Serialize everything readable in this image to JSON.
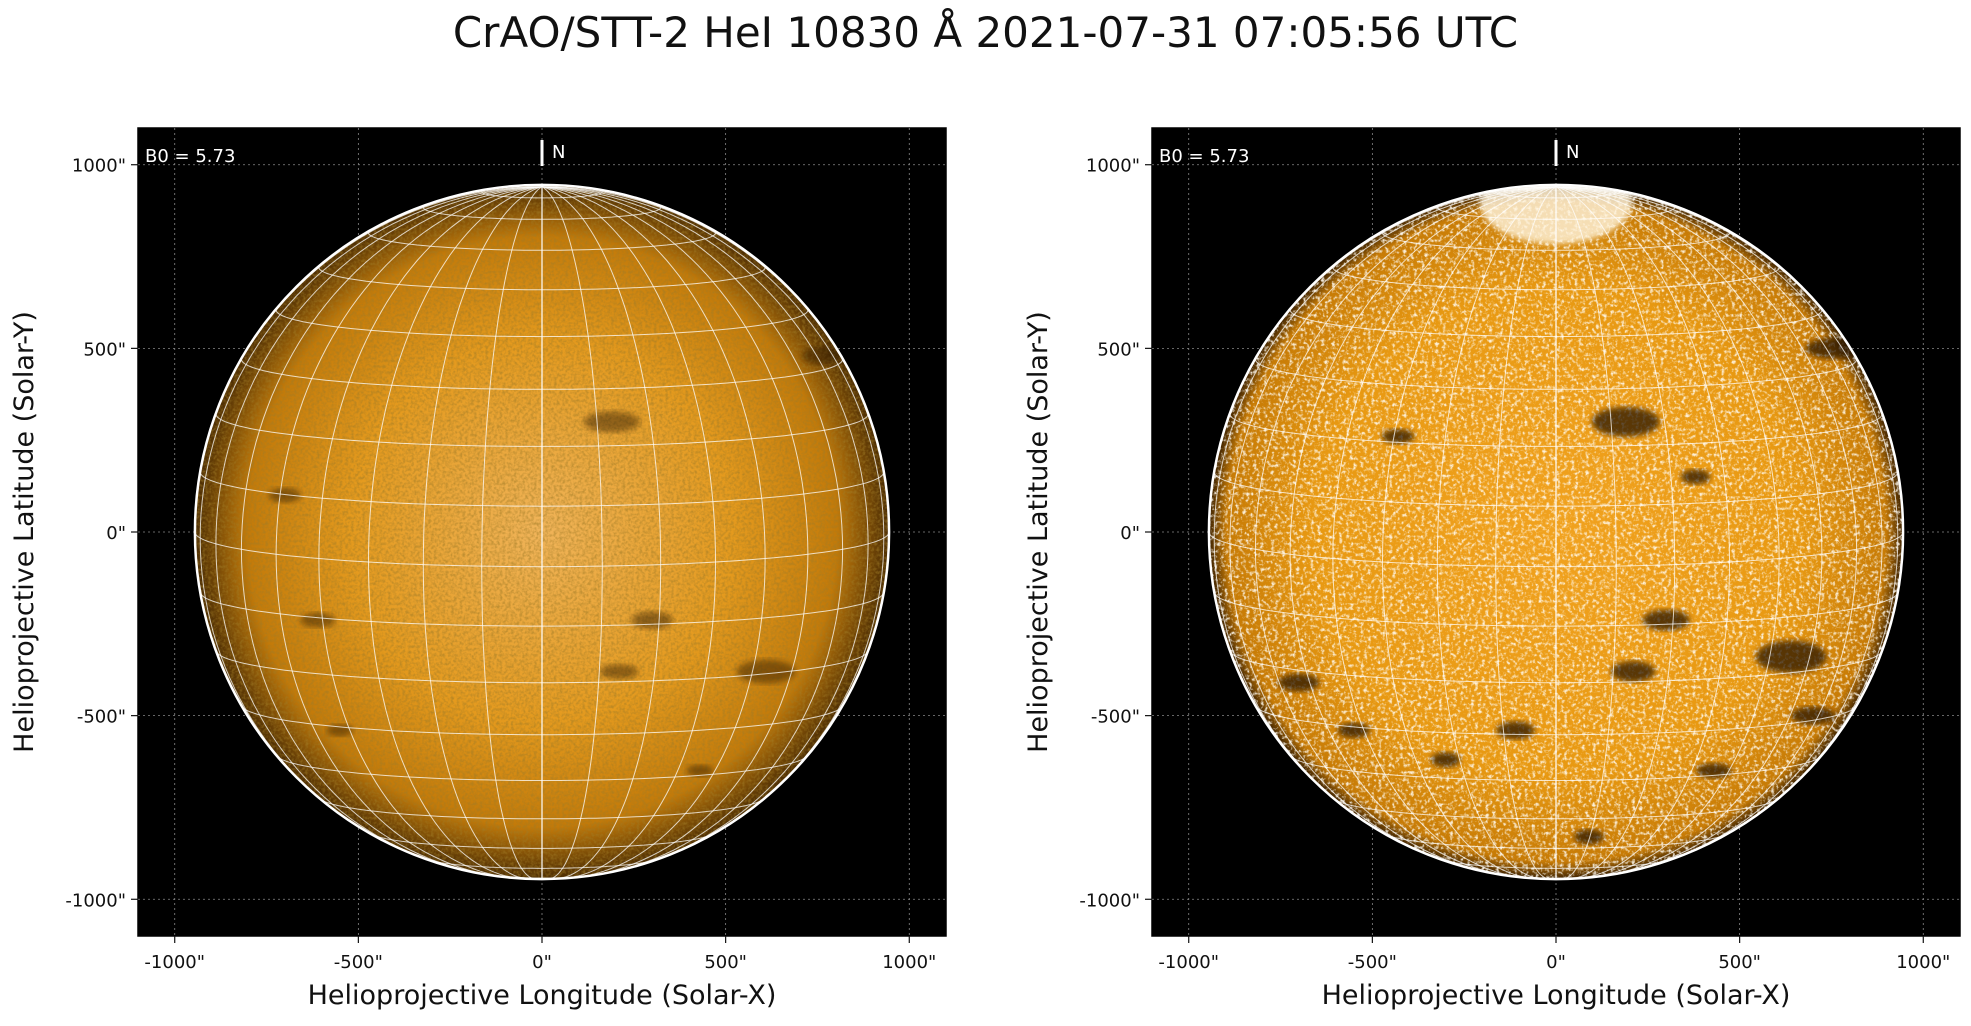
{
  "figure": {
    "title": "CrAO/STT-2 HeI 10830 Å 2021-07-31 07:05:56 UTC",
    "colors": {
      "background": "#000000",
      "disk": "#e79a14",
      "grid": "#ffffff",
      "axes_text": "#111111"
    }
  },
  "panels": [
    {
      "id": "left",
      "annotation": "B0 = 5.73",
      "north_label": "N",
      "xlabel": "Helioprojective Longitude (Solar-X)",
      "ylabel": "Helioprojective Latitude (Solar-Y)",
      "x_ticks": [
        "-1000\"",
        "-500\"",
        "0\"",
        "500\"",
        "1000\""
      ],
      "y_ticks": [
        "1000\"",
        "500\"",
        "0\"",
        "-500\"",
        "-1000\""
      ],
      "tick_values": [
        -1000,
        -500,
        0,
        500,
        1000
      ],
      "axis_range": [
        -1100,
        1100
      ],
      "solar_radius_arcsec": 945,
      "contrast": "low"
    },
    {
      "id": "right",
      "annotation": "B0 = 5.73",
      "north_label": "N",
      "xlabel": "Helioprojective Longitude (Solar-X)",
      "ylabel": "Helioprojective Latitude (Solar-Y)",
      "x_ticks": [
        "-1000\"",
        "-500\"",
        "0\"",
        "500\"",
        "1000\""
      ],
      "y_ticks": [
        "1000\"",
        "500\"",
        "0\"",
        "-500\"",
        "-1000\""
      ],
      "tick_values": [
        -1000,
        -500,
        0,
        500,
        1000
      ],
      "axis_range": [
        -1100,
        1100
      ],
      "solar_radius_arcsec": 945,
      "contrast": "high"
    }
  ]
}
